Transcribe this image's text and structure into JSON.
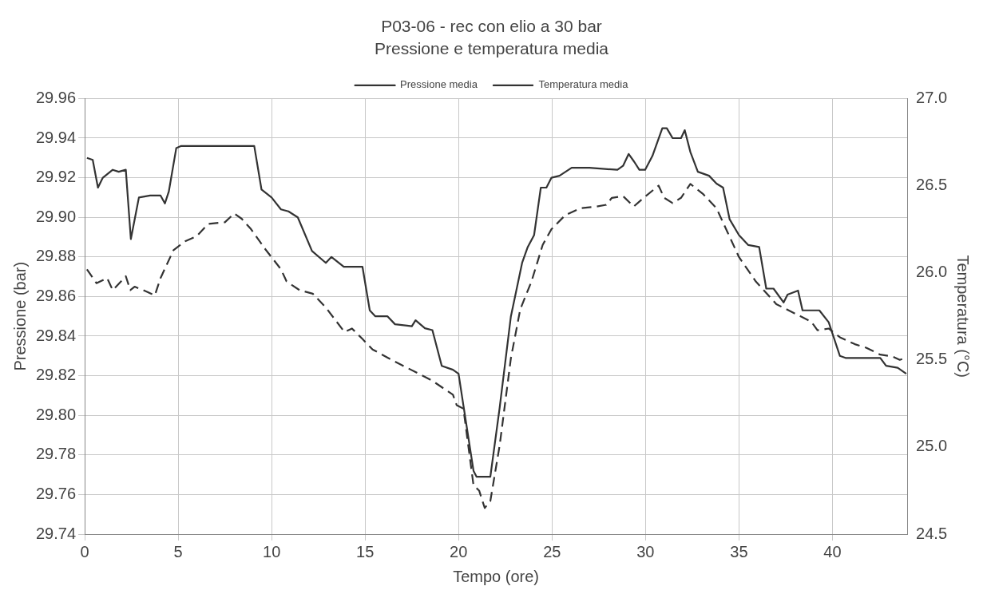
{
  "chart_data": {
    "type": "line",
    "title": "P03-06 - rec con elio a 30 bar",
    "subtitle": "Pressione e temperatura media",
    "xlabel": "Tempo (ore)",
    "ylabel": "Pressione (bar)",
    "y2label": "Temperatura (°C)",
    "xlim": [
      0,
      44
    ],
    "xticks": [
      0,
      5,
      10,
      15,
      20,
      25,
      30,
      35,
      40
    ],
    "ylim": [
      29.74,
      29.96
    ],
    "yticks": [
      {
        "value": 29.74,
        "label": "29.74"
      },
      {
        "value": 29.76,
        "label": "29.76"
      },
      {
        "value": 29.78,
        "label": "29.78"
      },
      {
        "value": 29.8,
        "label": "29.80"
      },
      {
        "value": 29.82,
        "label": "29.82"
      },
      {
        "value": 29.84,
        "label": "29.84"
      },
      {
        "value": 29.86,
        "label": "29.86"
      },
      {
        "value": 29.88,
        "label": "29.88"
      },
      {
        "value": 29.9,
        "label": "29.90"
      },
      {
        "value": 29.92,
        "label": "29.92"
      },
      {
        "value": 29.94,
        "label": "29.94"
      },
      {
        "value": 29.96,
        "label": "29.96"
      }
    ],
    "y2lim": [
      24.5,
      27.0
    ],
    "y2ticks": [
      {
        "value": 24.5,
        "label": "24.5"
      },
      {
        "value": 25,
        "label": "25.0"
      },
      {
        "value": 25.5,
        "label": "25.5"
      },
      {
        "value": 26,
        "label": "26.0"
      },
      {
        "value": 26.5,
        "label": "26.5"
      },
      {
        "value": 27,
        "label": "27.0"
      }
    ],
    "grid": true,
    "legend": "top",
    "marker": "none",
    "series": [
      {
        "name": "Pressione media",
        "color": "#333333",
        "line_style": "solid",
        "x": [
          0.12,
          0.43,
          0.71,
          0.97,
          1.5,
          1.82,
          2.2,
          2.47,
          2.9,
          3.5,
          4.06,
          4.29,
          4.5,
          4.9,
          5.14,
          9.07,
          9.46,
          10.0,
          10.5,
          10.9,
          11.4,
          12.16,
          12.9,
          13.2,
          13.86,
          14.86,
          15.25,
          15.55,
          16.2,
          16.6,
          17.5,
          17.7,
          18.2,
          18.6,
          19.1,
          19.7,
          20.0,
          20.26,
          20.8,
          20.96,
          21.7,
          22.2,
          22.8,
          23.4,
          23.7,
          24.04,
          24.4,
          24.7,
          24.97,
          25.4,
          26.05,
          27.0,
          28.5,
          28.8,
          29.1,
          29.4,
          29.67,
          29.98,
          30.37,
          30.9,
          31.14,
          31.45,
          31.9,
          32.1,
          32.4,
          32.8,
          33.4,
          33.8,
          34.15,
          34.5,
          35.0,
          35.5,
          36.08,
          36.46,
          36.85,
          37.39,
          37.6,
          38.16,
          38.4,
          39.3,
          39.8,
          40.4,
          40.7,
          42.56,
          42.87,
          43.49,
          43.95
        ],
        "values": [
          29.93,
          29.929,
          29.915,
          29.92,
          29.924,
          29.923,
          29.924,
          29.889,
          29.91,
          29.911,
          29.911,
          29.907,
          29.913,
          29.935,
          29.936,
          29.936,
          29.914,
          29.91,
          29.904,
          29.903,
          29.9,
          29.883,
          29.877,
          29.88,
          29.875,
          29.875,
          29.853,
          29.85,
          29.85,
          29.846,
          29.845,
          29.848,
          29.844,
          29.843,
          29.825,
          29.823,
          29.821,
          29.805,
          29.772,
          29.769,
          29.769,
          29.804,
          29.85,
          29.877,
          29.885,
          29.891,
          29.915,
          29.915,
          29.92,
          29.921,
          29.925,
          29.925,
          29.924,
          29.926,
          29.932,
          29.928,
          29.924,
          29.924,
          29.931,
          29.945,
          29.945,
          29.94,
          29.94,
          29.944,
          29.933,
          29.923,
          29.921,
          29.917,
          29.915,
          29.899,
          29.891,
          29.886,
          29.885,
          29.864,
          29.864,
          29.857,
          29.861,
          29.863,
          29.853,
          29.853,
          29.847,
          29.83,
          29.829,
          29.829,
          29.825,
          29.824,
          29.821
        ]
      },
      {
        "name": "Temperatura media",
        "color": "#333333",
        "line_style": "dashed",
        "axis": "y2",
        "x": [
          0.12,
          0.63,
          1.2,
          1.5,
          2.2,
          2.44,
          2.67,
          3.36,
          3.75,
          4.06,
          4.75,
          5.37,
          6.0,
          6.6,
          7.5,
          8.0,
          8.4,
          8.9,
          9.7,
          10.5,
          10.8,
          11.5,
          12.2,
          12.9,
          13.9,
          14.3,
          14.86,
          15.4,
          16.6,
          17.7,
          18.6,
          19.7,
          19.9,
          20.26,
          20.8,
          21.1,
          21.4,
          21.7,
          22.2,
          22.8,
          23.3,
          23.9,
          24.5,
          24.97,
          25.7,
          26.5,
          27.4,
          27.9,
          28.2,
          28.8,
          29.37,
          29.9,
          30.7,
          31.0,
          31.45,
          31.9,
          32.4,
          33.1,
          33.8,
          34.4,
          35.0,
          35.9,
          37.0,
          38.1,
          38.86,
          39.2,
          39.8,
          40.4,
          41.2,
          41.8,
          42.56,
          43.2,
          43.6,
          43.9
        ],
        "values": [
          26.02,
          25.94,
          25.97,
          25.9,
          25.98,
          25.9,
          25.92,
          25.89,
          25.87,
          25.97,
          26.13,
          26.18,
          26.21,
          26.28,
          26.29,
          26.34,
          26.31,
          26.25,
          26.13,
          26.02,
          25.95,
          25.9,
          25.88,
          25.8,
          25.66,
          25.68,
          25.62,
          25.56,
          25.49,
          25.43,
          25.38,
          25.3,
          25.24,
          25.22,
          24.78,
          24.75,
          24.65,
          24.69,
          25.01,
          25.51,
          25.79,
          25.95,
          26.16,
          26.25,
          26.33,
          26.37,
          26.38,
          26.39,
          26.43,
          26.44,
          26.38,
          26.43,
          26.5,
          26.43,
          26.4,
          26.43,
          26.51,
          26.45,
          26.37,
          26.23,
          26.09,
          25.95,
          25.82,
          25.76,
          25.72,
          25.67,
          25.68,
          25.63,
          25.59,
          25.57,
          25.53,
          25.52,
          25.5,
          25.51
        ]
      }
    ]
  }
}
